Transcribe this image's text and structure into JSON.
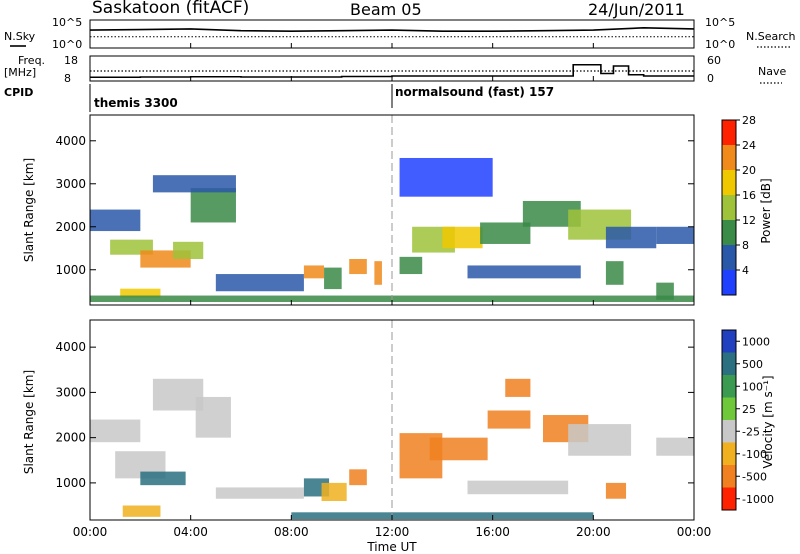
{
  "header": {
    "station": "Saskatoon (fitACF)",
    "beam": "Beam 05",
    "date": "24/Jun/2011"
  },
  "noise_panel": {
    "left_label": "N.Sky",
    "right_label": "N.Search",
    "left_ticks": [
      "10^5",
      "10^0"
    ],
    "right_ticks": [
      "10^5",
      "10^0"
    ]
  },
  "freq_panel": {
    "left_label_1": "Freq.",
    "left_label_2": "[MHz]",
    "left_ticks": [
      "18",
      "8"
    ],
    "right_label": "Nave",
    "right_ticks": [
      "60",
      "0"
    ]
  },
  "cpid": {
    "label": "CPID",
    "segments": [
      {
        "name": "themis 3300",
        "start_hour": 0
      },
      {
        "name": "normalsound (fast) 157",
        "start_hour": 12
      }
    ]
  },
  "time_axis": {
    "label": "Time UT",
    "ticks": [
      "00:00",
      "04:00",
      "08:00",
      "12:00",
      "16:00",
      "20:00",
      "00:00"
    ]
  },
  "power_panel": {
    "ylabel": "Slant Range [km]",
    "y_ticks": [
      "1000",
      "2000",
      "3000",
      "4000"
    ],
    "colorbar_label": "Power [dB]",
    "colorbar_ticks": [
      "4",
      "8",
      "12",
      "16",
      "20",
      "24",
      "28"
    ],
    "colors": [
      "#2040ff",
      "#2a58a8",
      "#3a8a48",
      "#9ec23a",
      "#f0c800",
      "#f08a1a",
      "#ff2200"
    ]
  },
  "velocity_panel": {
    "ylabel": "Slant Range [km]",
    "y_ticks": [
      "1000",
      "2000",
      "3000",
      "4000"
    ],
    "colorbar_label": "Velocity [m s⁻¹]",
    "colorbar_ticks": [
      "1000",
      "500",
      "100",
      "25",
      "-25",
      "-100",
      "-500",
      "-1000"
    ],
    "colors": [
      "#2040c0",
      "#2a7080",
      "#3a9a50",
      "#6ec83a",
      "#c8c8c8",
      "#f0b020",
      "#f08020",
      "#ff2200"
    ]
  },
  "chart_data": [
    {
      "type": "line",
      "title": "N.Sky / N.Search",
      "x": [
        0,
        2,
        4,
        6,
        8,
        10,
        12,
        14,
        16,
        18,
        20,
        22,
        24
      ],
      "series": [
        {
          "name": "N.Sky",
          "values": [
            3.2,
            3.3,
            3.4,
            3.1,
            3.0,
            3.1,
            3.2,
            3.0,
            3.0,
            3.1,
            3.2,
            3.6,
            3.4
          ]
        },
        {
          "name": "N.Search",
          "values": [
            2.0,
            2.0,
            2.0,
            2.0,
            2.0,
            2.0,
            2.0,
            2.0,
            2.0,
            2.0,
            2.0,
            2.0,
            2.0
          ]
        }
      ],
      "ylim": [
        0,
        5
      ],
      "scale": "log"
    },
    {
      "type": "line",
      "title": "Freq. / Nave",
      "x": [
        0,
        2,
        4,
        6,
        8,
        10,
        12,
        14,
        16,
        18,
        19.2,
        20.3,
        20.8,
        21.4,
        22,
        24
      ],
      "series": [
        {
          "name": "Freq.",
          "values": [
            9.5,
            9.6,
            9.7,
            9.6,
            9.6,
            9.8,
            10.0,
            10.0,
            10.0,
            10.0,
            14.5,
            11.0,
            14.0,
            10.5,
            10.0,
            10.0
          ]
        },
        {
          "name": "Nave",
          "values": [
            24,
            24,
            24,
            24,
            24,
            24,
            24,
            24,
            24,
            24,
            24,
            24,
            24,
            24,
            24,
            24
          ]
        }
      ],
      "ylim": [
        8,
        18
      ]
    },
    {
      "type": "heatmap",
      "title": "Power [dB]",
      "xlabel": "Time UT",
      "ylabel": "Slant Range [km]",
      "xlim": [
        0,
        24
      ],
      "ylim": [
        180,
        4600
      ],
      "clim": [
        0,
        30
      ],
      "blobs": [
        {
          "t0": 0.0,
          "t1": 2.0,
          "r0": 1900,
          "r1": 2400,
          "v": 8
        },
        {
          "t0": 0.8,
          "t1": 2.5,
          "r0": 1350,
          "r1": 1700,
          "v": 16
        },
        {
          "t0": 2.0,
          "t1": 4.0,
          "r0": 1050,
          "r1": 1450,
          "v": 22
        },
        {
          "t0": 3.3,
          "t1": 4.5,
          "r0": 1250,
          "r1": 1650,
          "v": 14
        },
        {
          "t0": 4.0,
          "t1": 5.8,
          "r0": 2100,
          "r1": 2900,
          "v": 10
        },
        {
          "t0": 1.2,
          "t1": 2.8,
          "r0": 350,
          "r1": 560,
          "v": 20
        },
        {
          "t0": 2.5,
          "t1": 5.8,
          "r0": 2800,
          "r1": 3200,
          "v": 6
        },
        {
          "t0": 5.0,
          "t1": 8.5,
          "r0": 500,
          "r1": 900,
          "v": 8
        },
        {
          "t0": 8.5,
          "t1": 9.3,
          "r0": 800,
          "r1": 1100,
          "v": 22
        },
        {
          "t0": 9.3,
          "t1": 10.0,
          "r0": 550,
          "r1": 1050,
          "v": 12
        },
        {
          "t0": 10.3,
          "t1": 11.0,
          "r0": 900,
          "r1": 1250,
          "v": 22
        },
        {
          "t0": 11.3,
          "t1": 11.6,
          "r0": 650,
          "r1": 1200,
          "v": 24
        },
        {
          "t0": 0.0,
          "t1": 24.0,
          "r0": 250,
          "r1": 400,
          "v": 10
        },
        {
          "t0": 12.3,
          "t1": 13.2,
          "r0": 900,
          "r1": 1300,
          "v": 10
        },
        {
          "t0": 12.8,
          "t1": 14.5,
          "r0": 1400,
          "r1": 2000,
          "v": 14
        },
        {
          "t0": 14.0,
          "t1": 15.6,
          "r0": 1500,
          "r1": 2000,
          "v": 18
        },
        {
          "t0": 15.5,
          "t1": 17.5,
          "r0": 1600,
          "r1": 2100,
          "v": 10
        },
        {
          "t0": 15.0,
          "t1": 19.5,
          "r0": 800,
          "r1": 1100,
          "v": 8
        },
        {
          "t0": 17.2,
          "t1": 19.5,
          "r0": 2000,
          "r1": 2600,
          "v": 10
        },
        {
          "t0": 19.0,
          "t1": 21.5,
          "r0": 1700,
          "r1": 2400,
          "v": 14
        },
        {
          "t0": 20.5,
          "t1": 22.5,
          "r0": 1500,
          "r1": 2000,
          "v": 8
        },
        {
          "t0": 22.5,
          "t1": 24.0,
          "r0": 1600,
          "r1": 2000,
          "v": 6
        },
        {
          "t0": 12.3,
          "t1": 16.0,
          "r0": 2700,
          "r1": 3600,
          "v": 4
        },
        {
          "t0": 20.5,
          "t1": 21.2,
          "r0": 650,
          "r1": 1200,
          "v": 12
        },
        {
          "t0": 22.5,
          "t1": 23.2,
          "r0": 300,
          "r1": 700,
          "v": 12
        }
      ]
    },
    {
      "type": "heatmap",
      "title": "Velocity [m s⁻¹]",
      "xlabel": "Time UT",
      "ylabel": "Slant Range [km]",
      "xlim": [
        0,
        24
      ],
      "ylim": [
        180,
        4600
      ],
      "clim": [
        -1000,
        1000
      ],
      "blobs": [
        {
          "t0": 0.0,
          "t1": 2.0,
          "r0": 1900,
          "r1": 2400,
          "v": 0
        },
        {
          "t0": 1.0,
          "t1": 3.0,
          "r0": 1100,
          "r1": 1700,
          "v": 0
        },
        {
          "t0": 2.5,
          "t1": 4.5,
          "r0": 2600,
          "r1": 3300,
          "v": 0
        },
        {
          "t0": 4.2,
          "t1": 5.6,
          "r0": 2000,
          "r1": 2900,
          "v": 0
        },
        {
          "t0": 1.3,
          "t1": 2.8,
          "r0": 250,
          "r1": 500,
          "v": -60
        },
        {
          "t0": 2.0,
          "t1": 3.8,
          "r0": 950,
          "r1": 1250,
          "v": 150
        },
        {
          "t0": 5.0,
          "t1": 8.5,
          "r0": 650,
          "r1": 900,
          "v": 0
        },
        {
          "t0": 8.5,
          "t1": 9.5,
          "r0": 700,
          "r1": 1100,
          "v": 150
        },
        {
          "t0": 10.3,
          "t1": 11.0,
          "r0": 950,
          "r1": 1300,
          "v": -300
        },
        {
          "t0": 9.2,
          "t1": 10.2,
          "r0": 600,
          "r1": 1000,
          "v": -60
        },
        {
          "t0": 12.3,
          "t1": 14.0,
          "r0": 1100,
          "r1": 2100,
          "v": -300
        },
        {
          "t0": 13.5,
          "t1": 15.8,
          "r0": 1500,
          "r1": 2000,
          "v": -300
        },
        {
          "t0": 15.8,
          "t1": 17.5,
          "r0": 2200,
          "r1": 2600,
          "v": -300
        },
        {
          "t0": 18.0,
          "t1": 19.8,
          "r0": 1900,
          "r1": 2500,
          "v": -300
        },
        {
          "t0": 19.0,
          "t1": 21.5,
          "r0": 1600,
          "r1": 2300,
          "v": 0
        },
        {
          "t0": 15.0,
          "t1": 19.0,
          "r0": 750,
          "r1": 1050,
          "v": 0
        },
        {
          "t0": 20.5,
          "t1": 21.3,
          "r0": 650,
          "r1": 1000,
          "v": -300
        },
        {
          "t0": 22.5,
          "t1": 24.0,
          "r0": 1600,
          "r1": 2000,
          "v": 0
        },
        {
          "t0": 8.0,
          "t1": 20.0,
          "r0": 200,
          "r1": 350,
          "v": 150
        },
        {
          "t0": 16.5,
          "t1": 17.5,
          "r0": 2900,
          "r1": 3300,
          "v": -300
        }
      ]
    }
  ]
}
